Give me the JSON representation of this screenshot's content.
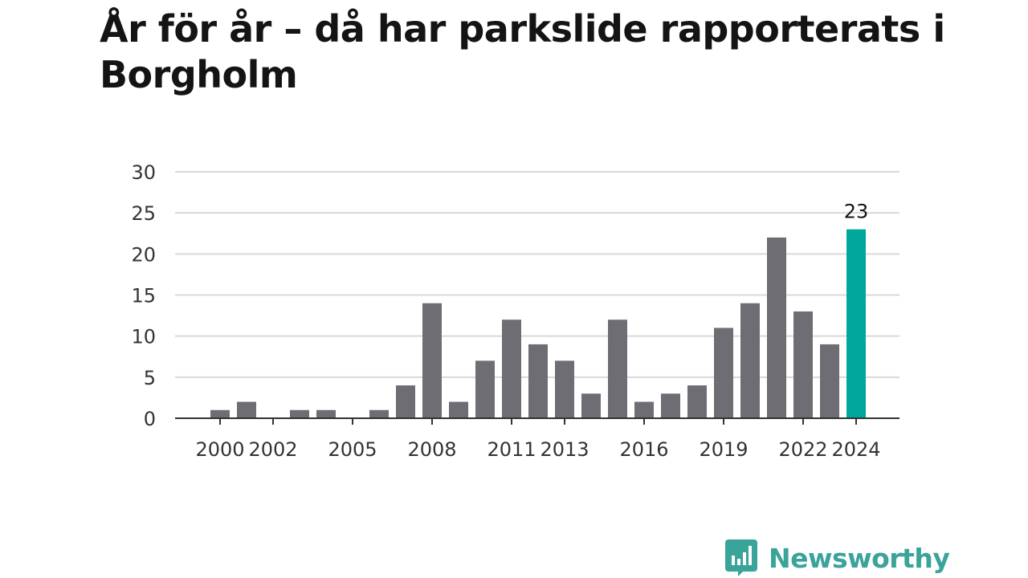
{
  "chart_data": {
    "type": "bar",
    "title": "År för år – då har parkslide rapporterats i Borgholm",
    "x": [
      2000,
      2001,
      2002,
      2003,
      2004,
      2005,
      2006,
      2007,
      2008,
      2009,
      2010,
      2011,
      2012,
      2013,
      2014,
      2015,
      2016,
      2017,
      2018,
      2019,
      2020,
      2021,
      2022,
      2023,
      2024
    ],
    "values": [
      1,
      2,
      0,
      1,
      1,
      0,
      1,
      4,
      14,
      2,
      7,
      12,
      9,
      7,
      3,
      12,
      2,
      3,
      4,
      11,
      14,
      22,
      13,
      9,
      23
    ],
    "x_tick_labels": [
      "2000",
      "2002",
      "2005",
      "2008",
      "2011",
      "2013",
      "2016",
      "2019",
      "2022",
      "2024"
    ],
    "y_ticks": [
      0,
      5,
      10,
      15,
      20,
      25,
      30
    ],
    "ylim": [
      0,
      30
    ],
    "xlabel": "",
    "ylabel": "",
    "grid": true,
    "highlight": {
      "year": 2024,
      "value": 23,
      "label": "23"
    },
    "colors": {
      "bar": "#6e6d73",
      "highlight": "#00a79d",
      "grid": "#d9d9d9",
      "axis": "#333333"
    }
  },
  "branding": {
    "logo_text": "Newsworthy",
    "logo_icon": "bar-chart-speech-bubble-icon",
    "color": "#3aa39a"
  }
}
